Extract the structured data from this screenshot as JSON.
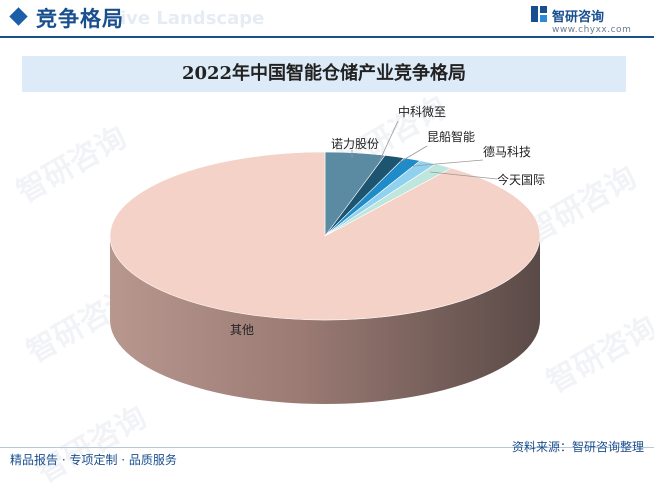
{
  "header": {
    "title": "竞争格局",
    "watermark": "ive Landscape",
    "brand_name": "智研咨询",
    "brand_url": "www.chyxx.com"
  },
  "watermarks": [
    "智研咨询",
    "智研咨询",
    "智研咨询",
    "智研咨询",
    "智研咨询",
    "智研咨询"
  ],
  "chart_data": {
    "type": "pie",
    "title": "2022年中国智能仓储产业竞争格局",
    "slices": [
      {
        "label": "诺力股份",
        "value": 4.5,
        "color": "#5b8aa3"
      },
      {
        "label": "中科微至",
        "value": 1.5,
        "color": "#1d5470"
      },
      {
        "label": "昆船智能",
        "value": 1.3,
        "color": "#1f8bc9"
      },
      {
        "label": "德马科技",
        "value": 1.3,
        "color": "#8fd1ef"
      },
      {
        "label": "今天国际",
        "value": 1.4,
        "color": "#bfe6dc"
      },
      {
        "label": "其他",
        "value": 90.0,
        "color": "#f4d2c8"
      }
    ]
  },
  "footer": {
    "left": "精品报告 · 专项定制 · 品质服务",
    "source": "资料来源：智研咨询整理"
  }
}
